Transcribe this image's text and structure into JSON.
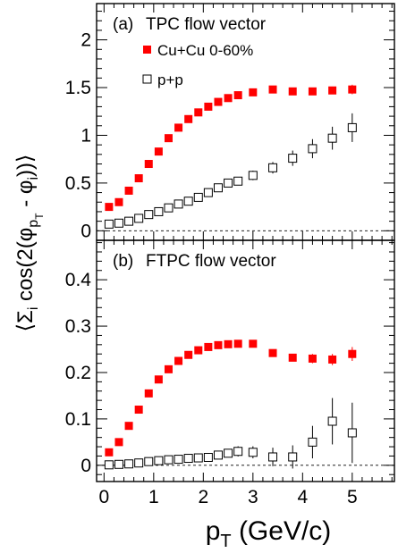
{
  "chart_data": [
    {
      "type": "scatter",
      "panel_label": "(a)",
      "title": "TPC flow vector",
      "ylabel": "⟨Σi cos(2(φpT - φi))⟩",
      "xlabel": "pT (GeV/c)",
      "xlim": [
        -0.15,
        5.85
      ],
      "ylim": [
        -0.1,
        2.38
      ],
      "yticks": [
        "0",
        "0.5",
        "1",
        "1.5",
        "2"
      ],
      "ytick_values": [
        0,
        0.5,
        1,
        1.5,
        2
      ],
      "reference_line": 0,
      "series": [
        {
          "name": "Cu+Cu 0-60%",
          "color": "#ff0000",
          "marker": "filled-square",
          "x": [
            0.1,
            0.3,
            0.5,
            0.7,
            0.9,
            1.1,
            1.3,
            1.5,
            1.7,
            1.9,
            2.1,
            2.3,
            2.5,
            2.7,
            3.0,
            3.4,
            3.8,
            4.2,
            4.6,
            5.0
          ],
          "y": [
            0.25,
            0.3,
            0.42,
            0.55,
            0.7,
            0.83,
            0.97,
            1.08,
            1.17,
            1.24,
            1.3,
            1.35,
            1.39,
            1.42,
            1.45,
            1.48,
            1.46,
            1.46,
            1.47,
            1.48
          ],
          "err": [
            0,
            0,
            0,
            0,
            0,
            0,
            0,
            0,
            0,
            0,
            0,
            0,
            0,
            0,
            0.02,
            0.02,
            0.03,
            0.03,
            0.04,
            0.05
          ]
        },
        {
          "name": "p+p",
          "color": "#000000",
          "marker": "open-square",
          "x": [
            0.1,
            0.3,
            0.5,
            0.7,
            0.9,
            1.1,
            1.3,
            1.5,
            1.7,
            1.9,
            2.1,
            2.3,
            2.5,
            2.7,
            3.0,
            3.4,
            3.8,
            4.2,
            4.6,
            5.0
          ],
          "y": [
            0.07,
            0.08,
            0.1,
            0.13,
            0.17,
            0.2,
            0.24,
            0.28,
            0.31,
            0.35,
            0.4,
            0.45,
            0.5,
            0.52,
            0.58,
            0.66,
            0.76,
            0.86,
            0.97,
            1.08
          ],
          "err": [
            0.01,
            0.01,
            0.01,
            0.01,
            0.01,
            0.01,
            0.02,
            0.02,
            0.02,
            0.02,
            0.03,
            0.03,
            0.03,
            0.04,
            0.05,
            0.06,
            0.08,
            0.1,
            0.12,
            0.15
          ]
        }
      ]
    },
    {
      "type": "scatter",
      "panel_label": "(b)",
      "title": "FTPC flow vector",
      "xlabel": "pT (GeV/c)",
      "xlim": [
        -0.15,
        5.85
      ],
      "ylim": [
        -0.035,
        0.485
      ],
      "yticks": [
        "0",
        "0.1",
        "0.2",
        "0.3",
        "0.4"
      ],
      "ytick_values": [
        0,
        0.1,
        0.2,
        0.3,
        0.4
      ],
      "xticks": [
        "0",
        "1",
        "2",
        "3",
        "4",
        "5"
      ],
      "xtick_values": [
        0,
        1,
        2,
        3,
        4,
        5
      ],
      "reference_line": 0,
      "series": [
        {
          "name": "Cu+Cu 0-60%",
          "color": "#ff0000",
          "marker": "filled-square",
          "x": [
            0.1,
            0.3,
            0.5,
            0.7,
            0.9,
            1.1,
            1.3,
            1.5,
            1.7,
            1.9,
            2.1,
            2.3,
            2.5,
            2.7,
            3.0,
            3.4,
            3.8,
            4.2,
            4.6,
            5.0
          ],
          "y": [
            0.028,
            0.05,
            0.085,
            0.12,
            0.155,
            0.185,
            0.207,
            0.225,
            0.238,
            0.248,
            0.255,
            0.259,
            0.261,
            0.262,
            0.262,
            0.242,
            0.232,
            0.23,
            0.228,
            0.24
          ],
          "err": [
            0,
            0,
            0,
            0,
            0,
            0,
            0,
            0,
            0,
            0,
            0,
            0,
            0,
            0,
            0.004,
            0.005,
            0.006,
            0.01,
            0.012,
            0.015
          ]
        },
        {
          "name": "p+p",
          "color": "#000000",
          "marker": "open-square",
          "x": [
            0.1,
            0.3,
            0.5,
            0.7,
            0.9,
            1.1,
            1.3,
            1.5,
            1.7,
            1.9,
            2.1,
            2.3,
            2.5,
            2.7,
            3.0,
            3.4,
            3.8,
            4.2,
            4.6,
            5.0
          ],
          "y": [
            0.001,
            0.002,
            0.003,
            0.005,
            0.008,
            0.01,
            0.012,
            0.013,
            0.015,
            0.016,
            0.017,
            0.022,
            0.026,
            0.03,
            0.028,
            0.018,
            0.018,
            0.05,
            0.095,
            0.07
          ],
          "err": [
            0.002,
            0.002,
            0.003,
            0.003,
            0.004,
            0.004,
            0.005,
            0.005,
            0.006,
            0.006,
            0.007,
            0.008,
            0.009,
            0.011,
            0.013,
            0.02,
            0.025,
            0.035,
            0.05,
            0.065
          ]
        }
      ]
    }
  ]
}
